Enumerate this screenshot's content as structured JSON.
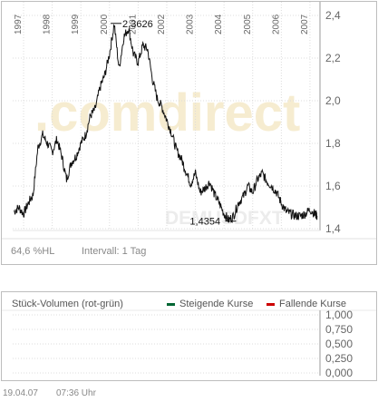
{
  "chart_data": {
    "type": "line",
    "years": [
      "1997",
      "1998",
      "1999",
      "2000",
      "2001",
      "2002",
      "2003",
      "2004",
      "2005",
      "2006",
      "2007"
    ],
    "y_ticks": [
      "2,4",
      "2,2",
      "2,0",
      "1,8",
      "1,6",
      "1,4"
    ],
    "ylim": [
      1.4,
      2.4
    ],
    "xlim": [
      "1997-01",
      "2007-04"
    ],
    "x": [
      "1996-09",
      "1996-11",
      "1997-01",
      "1997-03",
      "1997-05",
      "1997-07",
      "1997-09",
      "1997-11",
      "1998-01",
      "1998-03",
      "1998-05",
      "1998-07",
      "1998-09",
      "1998-11",
      "1999-01",
      "1999-03",
      "1999-05",
      "1999-07",
      "1999-09",
      "1999-11",
      "2000-01",
      "2000-03",
      "2000-05",
      "2000-07",
      "2000-09",
      "2000-11",
      "2001-01",
      "2001-03",
      "2001-05",
      "2001-07",
      "2001-09",
      "2001-11",
      "2002-01",
      "2002-03",
      "2002-05",
      "2002-07",
      "2002-09",
      "2002-11",
      "2003-01",
      "2003-03",
      "2003-05",
      "2003-07",
      "2003-09",
      "2003-11",
      "2004-01",
      "2004-03",
      "2004-05",
      "2004-07",
      "2004-09",
      "2004-11",
      "2005-01",
      "2005-03",
      "2005-05",
      "2005-07",
      "2005-09",
      "2005-11",
      "2006-01",
      "2006-03",
      "2006-05",
      "2006-07",
      "2006-09",
      "2006-11",
      "2007-01",
      "2007-03",
      "2007-04"
    ],
    "y": [
      1.48,
      1.5,
      1.47,
      1.52,
      1.56,
      1.78,
      1.84,
      1.8,
      1.76,
      1.82,
      1.74,
      1.63,
      1.71,
      1.74,
      1.8,
      1.84,
      1.93,
      1.96,
      2.06,
      2.12,
      2.22,
      2.36,
      2.15,
      2.3,
      2.34,
      2.22,
      2.18,
      2.26,
      2.24,
      2.1,
      2.01,
      1.97,
      1.91,
      1.85,
      1.77,
      1.73,
      1.67,
      1.61,
      1.66,
      1.57,
      1.59,
      1.62,
      1.56,
      1.52,
      1.47,
      1.44,
      1.46,
      1.52,
      1.55,
      1.6,
      1.57,
      1.63,
      1.66,
      1.62,
      1.6,
      1.57,
      1.52,
      1.48,
      1.47,
      1.46,
      1.46,
      1.47,
      1.49,
      1.47,
      1.46
    ],
    "annotations": [
      {
        "label": "2,3626",
        "x": "2000-03",
        "y": 2.3626
      },
      {
        "label": "1,4354",
        "x": "2004-03",
        "y": 1.4354
      }
    ],
    "watermark": ".comdirect",
    "watermark2": "DEMUSDFXT",
    "stat_label": "64,6 %HL",
    "interval_label": "Intervall: 1 Tag",
    "grid": true
  },
  "volume": {
    "title": "Stück-Volumen (rot-grün)",
    "legend_up": "Steigende Kurse",
    "legend_down": "Fallende Kurse",
    "y_ticks": [
      "1,000",
      "0,750",
      "0,500",
      "0,250",
      "0,000"
    ],
    "up_color": "#006633",
    "down_color": "#cc0000"
  },
  "footer": {
    "date": "19.04.07",
    "time": "07:36 Uhr"
  }
}
